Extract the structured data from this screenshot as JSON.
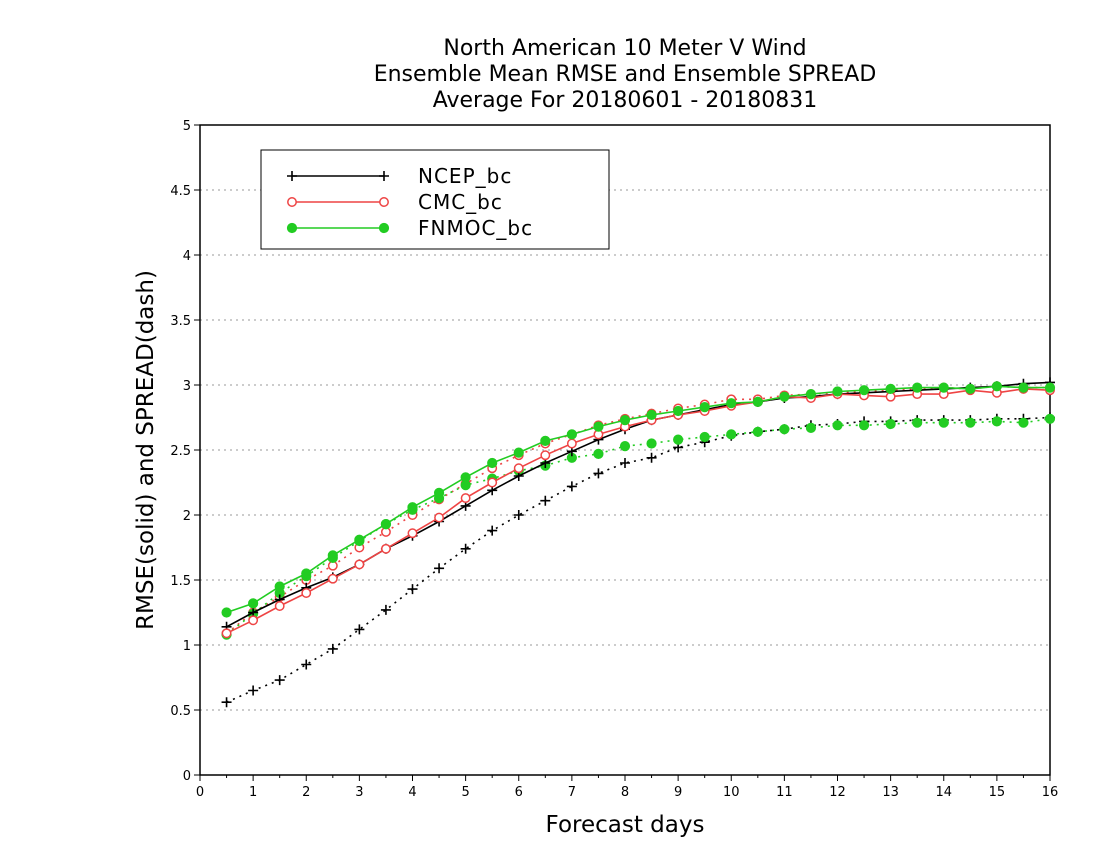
{
  "chart_data": {
    "type": "line",
    "title_lines": [
      "North American 10 Meter V Wind",
      "Ensemble Mean RMSE and Ensemble SPREAD",
      "Average For 20180601 - 20180831"
    ],
    "xlabel": "Forecast days",
    "ylabel": "RMSE(solid) and SPREAD(dash)",
    "xlim": [
      0,
      16
    ],
    "ylim": [
      0,
      5
    ],
    "xticks": [
      "0",
      "1",
      "2",
      "3",
      "4",
      "5",
      "6",
      "7",
      "8",
      "9",
      "10",
      "11",
      "12",
      "13",
      "14",
      "15",
      "16"
    ],
    "yticks": [
      "0",
      "0.5",
      "1",
      "1.5",
      "2",
      "2.5",
      "3",
      "3.5",
      "4",
      "4.5",
      "5"
    ],
    "grid": "horizontal dotted",
    "legend_position": "top-left",
    "x": [
      0.5,
      1,
      1.5,
      2,
      2.5,
      3,
      3.5,
      4,
      4.5,
      5,
      5.5,
      6,
      6.5,
      7,
      7.5,
      8,
      8.5,
      9,
      9.5,
      10,
      10.5,
      11,
      11.5,
      12,
      12.5,
      13,
      13.5,
      14,
      14.5,
      15,
      15.5,
      16
    ],
    "series": [
      {
        "name": "NCEP_bc",
        "legend_label": "NCEP_bc",
        "style": "solid",
        "color": "#000000",
        "marker": "plus",
        "values": [
          1.14,
          1.25,
          1.35,
          1.44,
          1.52,
          1.62,
          1.74,
          1.84,
          1.95,
          2.07,
          2.19,
          2.3,
          2.4,
          2.49,
          2.58,
          2.66,
          2.73,
          2.77,
          2.81,
          2.85,
          2.87,
          2.9,
          2.91,
          2.93,
          2.94,
          2.95,
          2.96,
          2.97,
          2.98,
          2.99,
          3.01,
          3.02
        ]
      },
      {
        "name": "NCEP_bc spread",
        "style": "dash",
        "color": "#000000",
        "marker": "plus",
        "values": [
          0.56,
          0.65,
          0.73,
          0.85,
          0.97,
          1.12,
          1.27,
          1.43,
          1.59,
          1.74,
          1.88,
          2.0,
          2.11,
          2.22,
          2.32,
          2.4,
          2.44,
          2.52,
          2.56,
          2.61,
          2.64,
          2.66,
          2.69,
          2.7,
          2.72,
          2.72,
          2.73,
          2.73,
          2.73,
          2.74,
          2.74,
          2.75
        ]
      },
      {
        "name": "CMC_bc",
        "legend_label": "CMC_bc",
        "style": "solid",
        "color": "#ee4444",
        "marker": "open-circle",
        "values": [
          1.09,
          1.19,
          1.3,
          1.4,
          1.51,
          1.62,
          1.74,
          1.86,
          1.98,
          2.13,
          2.25,
          2.36,
          2.46,
          2.55,
          2.62,
          2.68,
          2.73,
          2.77,
          2.8,
          2.84,
          2.87,
          2.91,
          2.9,
          2.93,
          2.92,
          2.91,
          2.93,
          2.93,
          2.96,
          2.94,
          2.97,
          2.96
        ]
      },
      {
        "name": "CMC_bc spread",
        "style": "dash",
        "color": "#ee4444",
        "marker": "open-circle",
        "values": [
          1.09,
          1.25,
          1.37,
          1.5,
          1.61,
          1.75,
          1.87,
          2.0,
          2.12,
          2.24,
          2.36,
          2.46,
          2.55,
          2.62,
          2.69,
          2.74,
          2.78,
          2.82,
          2.85,
          2.89,
          2.89,
          2.92,
          2.93,
          2.94,
          2.95,
          2.96,
          2.97,
          2.98,
          2.97,
          2.99,
          2.98,
          2.98
        ]
      },
      {
        "name": "FNMOC_bc",
        "legend_label": "FNMOC_bc",
        "style": "solid",
        "color": "#22cc22",
        "marker": "filled-circle",
        "values": [
          1.25,
          1.32,
          1.45,
          1.55,
          1.69,
          1.81,
          1.93,
          2.06,
          2.17,
          2.29,
          2.4,
          2.48,
          2.57,
          2.62,
          2.68,
          2.73,
          2.77,
          2.8,
          2.83,
          2.86,
          2.87,
          2.91,
          2.93,
          2.95,
          2.96,
          2.97,
          2.98,
          2.98,
          2.97,
          2.99,
          2.98,
          2.98
        ]
      },
      {
        "name": "FNMOC_bc spread",
        "style": "dash",
        "color": "#22cc22",
        "marker": "filled-circle",
        "values": [
          1.08,
          1.24,
          1.4,
          1.53,
          1.67,
          1.8,
          1.93,
          2.04,
          2.13,
          2.23,
          2.28,
          2.34,
          2.38,
          2.44,
          2.47,
          2.53,
          2.55,
          2.58,
          2.6,
          2.62,
          2.64,
          2.66,
          2.67,
          2.69,
          2.69,
          2.7,
          2.71,
          2.71,
          2.71,
          2.72,
          2.71,
          2.74
        ]
      }
    ]
  }
}
